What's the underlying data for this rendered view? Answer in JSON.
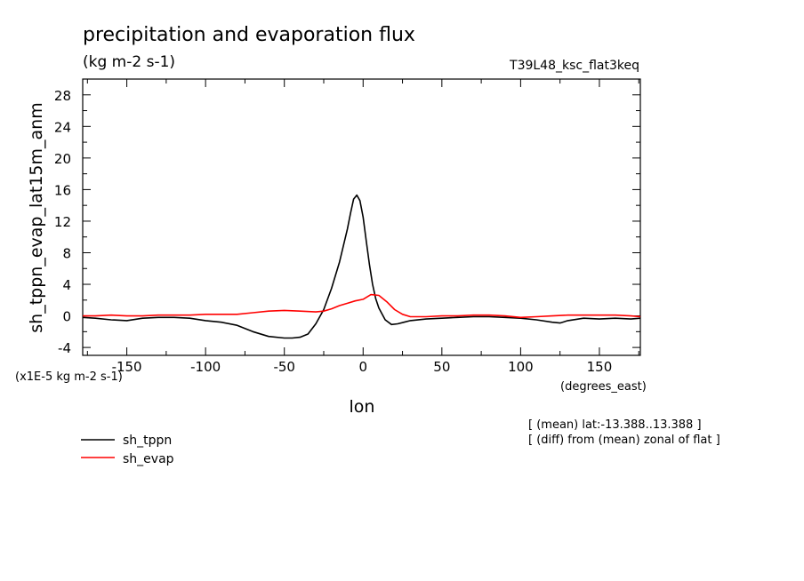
{
  "chart_data": {
    "type": "line",
    "title": "precipitation and evaporation flux",
    "subtitle": "(kg m-2 s-1)",
    "run_label": "T39L48_ksc_flat3keq",
    "xlabel": "lon",
    "xunits": "(degrees_east)",
    "ylabel": "sh_tppn_evap_lat15m_anm",
    "yunits": "(x1E-5 kg m-2 s-1)",
    "xlim": [
      -178,
      176
    ],
    "ylim": [
      -5,
      30
    ],
    "xticks": [
      -150,
      -100,
      -50,
      0,
      50,
      100,
      150
    ],
    "xtick_labels": [
      "-150",
      "-100",
      "-50",
      "0",
      "50",
      "100",
      "150"
    ],
    "yticks": [
      -4,
      0,
      4,
      8,
      12,
      16,
      20,
      24,
      28
    ],
    "ytick_labels": [
      "-4",
      "0",
      "4",
      "8",
      "12",
      "16",
      "20",
      "24",
      "28"
    ],
    "grid": false,
    "legend_position": "bottom-left",
    "notes": [
      "[ (mean) lat:-13.388..13.388 ]",
      "[ (diff) from (mean) zonal of flat ]"
    ],
    "series": [
      {
        "name": "sh_tppn",
        "color": "#000000",
        "x": [
          -178,
          -170,
          -160,
          -150,
          -140,
          -130,
          -120,
          -110,
          -100,
          -90,
          -80,
          -70,
          -60,
          -50,
          -45,
          -40,
          -35,
          -30,
          -25,
          -20,
          -15,
          -10,
          -8,
          -6,
          -4,
          -2,
          0,
          2,
          4,
          6,
          8,
          10,
          14,
          18,
          22,
          26,
          30,
          40,
          50,
          60,
          70,
          80,
          90,
          100,
          110,
          120,
          125,
          130,
          140,
          150,
          160,
          170,
          176
        ],
        "y": [
          -0.2,
          -0.3,
          -0.5,
          -0.6,
          -0.3,
          -0.2,
          -0.2,
          -0.3,
          -0.6,
          -0.8,
          -1.2,
          -2.0,
          -2.6,
          -2.8,
          -2.8,
          -2.7,
          -2.3,
          -1.0,
          0.8,
          3.5,
          6.8,
          11.0,
          13.0,
          14.8,
          15.3,
          14.6,
          12.5,
          9.5,
          6.5,
          4.0,
          2.2,
          1.0,
          -0.5,
          -1.1,
          -1.0,
          -0.8,
          -0.6,
          -0.4,
          -0.3,
          -0.2,
          -0.1,
          -0.1,
          -0.2,
          -0.3,
          -0.5,
          -0.8,
          -0.9,
          -0.6,
          -0.3,
          -0.4,
          -0.3,
          -0.4,
          -0.3
        ]
      },
      {
        "name": "sh_evap",
        "color": "#ff0000",
        "x": [
          -178,
          -170,
          -160,
          -150,
          -140,
          -130,
          -120,
          -110,
          -100,
          -90,
          -80,
          -70,
          -60,
          -50,
          -40,
          -30,
          -25,
          -20,
          -15,
          -10,
          -5,
          0,
          5,
          10,
          15,
          20,
          25,
          30,
          40,
          50,
          60,
          70,
          80,
          90,
          100,
          110,
          120,
          130,
          140,
          150,
          160,
          170,
          176
        ],
        "y": [
          0.0,
          0.0,
          0.1,
          0.0,
          0.0,
          0.1,
          0.1,
          0.1,
          0.2,
          0.2,
          0.2,
          0.4,
          0.6,
          0.7,
          0.6,
          0.5,
          0.6,
          0.9,
          1.3,
          1.6,
          1.9,
          2.1,
          2.7,
          2.6,
          1.8,
          0.8,
          0.2,
          -0.1,
          -0.1,
          0.0,
          0.0,
          0.1,
          0.1,
          0.0,
          -0.2,
          -0.1,
          0.0,
          0.1,
          0.1,
          0.1,
          0.1,
          0.0,
          -0.1
        ]
      }
    ]
  }
}
